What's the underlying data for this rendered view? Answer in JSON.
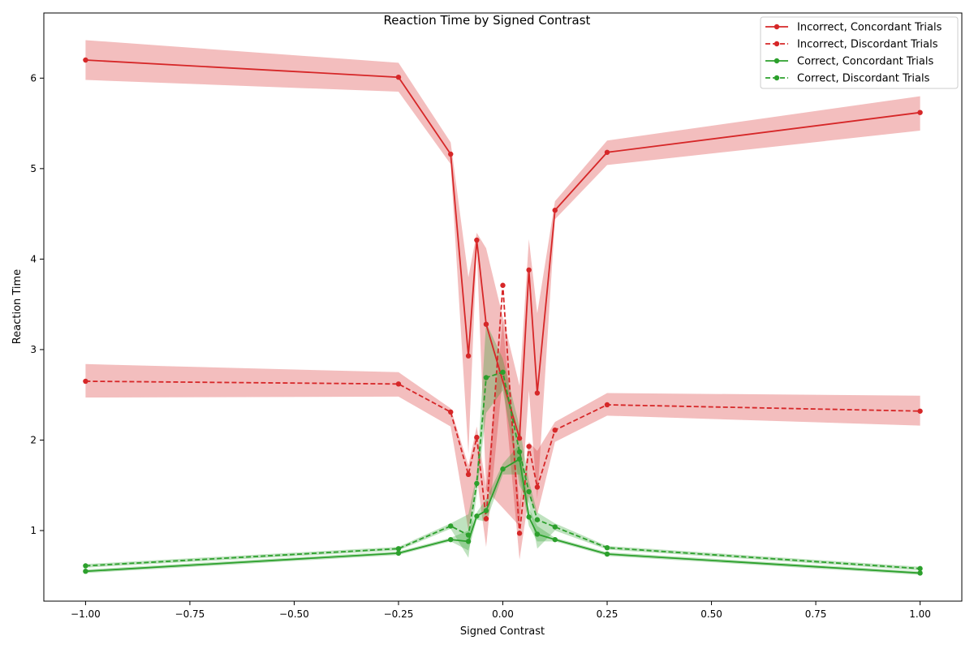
{
  "chart_data": {
    "type": "line",
    "title": "Reaction Time by Signed Contrast",
    "xlabel": "Signed Contrast",
    "ylabel": "Reaction Time",
    "xlim": [
      -1.1,
      1.1
    ],
    "ylim": [
      0.22,
      6.72
    ],
    "xticks": [
      -1.0,
      -0.75,
      -0.5,
      -0.25,
      0.0,
      0.25,
      0.5,
      0.75,
      1.0
    ],
    "xtick_labels": [
      "−1.00",
      "−0.75",
      "−0.50",
      "−0.25",
      "0.00",
      "0.25",
      "0.50",
      "0.75",
      "1.00"
    ],
    "yticks": [
      1,
      2,
      3,
      4,
      5,
      6
    ],
    "ytick_labels": [
      "1",
      "2",
      "3",
      "4",
      "5",
      "6"
    ],
    "grid": false,
    "legend_position": "top-right",
    "x": [
      -1.0,
      -0.25,
      -0.125,
      -0.0825,
      -0.0625,
      -0.04,
      0.0,
      0.04,
      0.0625,
      0.0825,
      0.125,
      0.25,
      1.0
    ],
    "series": [
      {
        "name": "Incorrect, Concordant Trials",
        "color": "#d62728",
        "linestyle": "solid",
        "values": [
          6.2,
          6.01,
          5.16,
          2.93,
          4.21,
          3.28,
          null,
          2.02,
          3.88,
          2.52,
          4.54,
          5.18,
          5.62
        ],
        "ci_lower": [
          5.98,
          5.85,
          5.05,
          1.85,
          4.12,
          1.45,
          null,
          1.05,
          2.55,
          1.35,
          4.44,
          5.04,
          5.42
        ],
        "ci_upper": [
          6.42,
          6.17,
          5.29,
          3.8,
          4.29,
          4.12,
          null,
          2.6,
          4.22,
          3.4,
          4.64,
          5.31,
          5.8
        ]
      },
      {
        "name": "Incorrect, Discordant Trials",
        "color": "#d62728",
        "linestyle": "dashed",
        "values": [
          2.65,
          2.62,
          2.31,
          1.62,
          2.03,
          1.13,
          3.71,
          0.97,
          1.93,
          1.48,
          2.11,
          2.39,
          2.32
        ],
        "ci_lower": [
          2.47,
          2.48,
          2.15,
          1.0,
          1.6,
          0.82,
          2.7,
          0.68,
          1.38,
          1.18,
          1.98,
          2.27,
          2.16
        ],
        "ci_upper": [
          2.84,
          2.75,
          2.35,
          1.72,
          2.15,
          1.48,
          3.32,
          1.28,
          1.98,
          1.88,
          2.2,
          2.52,
          2.49
        ]
      },
      {
        "name": "Correct, Concordant Trials",
        "color": "#2ca02c",
        "linestyle": "solid",
        "values": [
          0.55,
          0.75,
          0.9,
          0.88,
          1.16,
          1.22,
          1.68,
          1.79,
          1.15,
          0.96,
          0.9,
          0.74,
          0.53
        ],
        "ci_lower": [
          0.53,
          0.73,
          0.88,
          0.78,
          1.12,
          1.1,
          1.62,
          1.62,
          1.05,
          0.88,
          0.88,
          0.72,
          0.51
        ],
        "ci_upper": [
          0.57,
          0.77,
          0.92,
          1.0,
          1.2,
          1.35,
          1.74,
          1.95,
          1.25,
          1.05,
          0.92,
          0.76,
          0.55
        ]
      },
      {
        "name": "Correct, Discordant Trials",
        "color": "#2ca02c",
        "linestyle": "dashed",
        "values": [
          0.61,
          0.8,
          1.05,
          0.95,
          1.52,
          2.69,
          2.75,
          1.87,
          1.43,
          1.12,
          1.04,
          0.81,
          0.58
        ],
        "ci_lower": [
          0.59,
          0.78,
          1.02,
          0.7,
          1.4,
          2.3,
          2.55,
          1.5,
          1.3,
          0.8,
          1.0,
          0.79,
          0.56
        ],
        "ci_upper": [
          0.63,
          0.82,
          1.08,
          1.18,
          1.62,
          3.3,
          2.9,
          2.15,
          1.55,
          1.2,
          1.08,
          0.83,
          0.6
        ]
      }
    ]
  }
}
